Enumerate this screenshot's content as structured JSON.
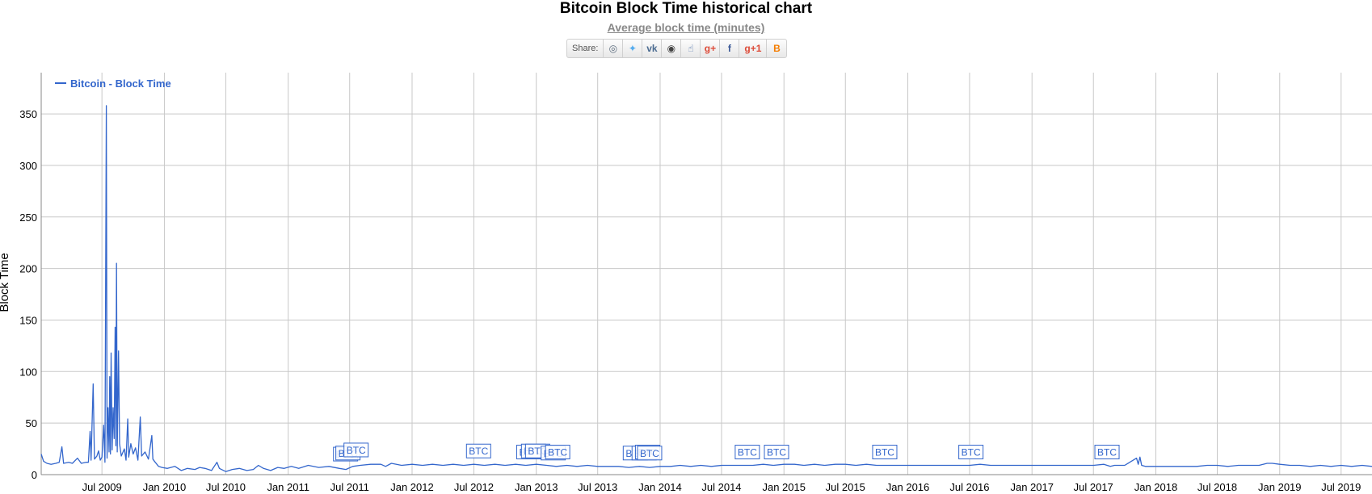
{
  "header": {
    "title": "Bitcoin Block Time historical chart",
    "subtitle": "Average block time (minutes)"
  },
  "share": {
    "label": "Share:",
    "buttons": [
      {
        "name": "reddit-icon",
        "glyph": "◎",
        "color": "#5f6f80"
      },
      {
        "name": "twitter-icon",
        "glyph": "✦",
        "color": "#55acee"
      },
      {
        "name": "vk-icon",
        "glyph": "vk",
        "color": "#4c6c91"
      },
      {
        "name": "weibo-icon",
        "glyph": "◉",
        "color": "#444444"
      },
      {
        "name": "like-icon",
        "glyph": "☝",
        "color": "#4a6ea8"
      },
      {
        "name": "google-plus-icon",
        "glyph": "g+",
        "color": "#dd4b39"
      },
      {
        "name": "facebook-icon",
        "glyph": "f",
        "color": "#3b5998"
      },
      {
        "name": "google-plus-one-icon",
        "glyph": "g+1",
        "color": "#dd4b39"
      },
      {
        "name": "blogger-icon",
        "glyph": "B",
        "color": "#f57d00"
      }
    ]
  },
  "chart_data": {
    "type": "line",
    "title": "Bitcoin Block Time historical chart",
    "subtitle": "Average block time (minutes)",
    "xlabel": "",
    "ylabel": "Block Time",
    "ylim": [
      0,
      390
    ],
    "yticks": [
      0,
      50,
      100,
      150,
      200,
      250,
      300,
      350
    ],
    "xlim": [
      "2009-01-03",
      "2019-09-30"
    ],
    "xticks": [
      {
        "label": "Jul 2009",
        "date": "2009-07-01"
      },
      {
        "label": "Jan 2010",
        "date": "2010-01-01"
      },
      {
        "label": "Jul 2010",
        "date": "2010-07-01"
      },
      {
        "label": "Jan 2011",
        "date": "2011-01-01"
      },
      {
        "label": "Jul 2011",
        "date": "2011-07-01"
      },
      {
        "label": "Jan 2012",
        "date": "2012-01-01"
      },
      {
        "label": "Jul 2012",
        "date": "2012-07-01"
      },
      {
        "label": "Jan 2013",
        "date": "2013-01-01"
      },
      {
        "label": "Jul 2013",
        "date": "2013-07-01"
      },
      {
        "label": "Jan 2014",
        "date": "2014-01-01"
      },
      {
        "label": "Jul 2014",
        "date": "2014-07-01"
      },
      {
        "label": "Jan 2015",
        "date": "2015-01-01"
      },
      {
        "label": "Jul 2015",
        "date": "2015-07-01"
      },
      {
        "label": "Jan 2016",
        "date": "2016-01-01"
      },
      {
        "label": "Jul 2016",
        "date": "2016-07-01"
      },
      {
        "label": "Jan 2017",
        "date": "2017-01-01"
      },
      {
        "label": "Jul 2017",
        "date": "2017-07-01"
      },
      {
        "label": "Jan 2018",
        "date": "2018-01-01"
      },
      {
        "label": "Jul 2018",
        "date": "2018-07-01"
      },
      {
        "label": "Jan 2019",
        "date": "2019-01-01"
      },
      {
        "label": "Jul 2019",
        "date": "2019-07-01"
      }
    ],
    "grid": true,
    "legend": {
      "position": "top-left",
      "entries": [
        "Bitcoin - Block Time"
      ]
    },
    "color": "#3366cc",
    "series": [
      {
        "name": "Bitcoin - Block Time",
        "points": [
          [
            "2009-01-03",
            20
          ],
          [
            "2009-01-10",
            13
          ],
          [
            "2009-01-20",
            11
          ],
          [
            "2009-02-01",
            10
          ],
          [
            "2009-02-15",
            11
          ],
          [
            "2009-02-25",
            12
          ],
          [
            "2009-03-05",
            27
          ],
          [
            "2009-03-10",
            11
          ],
          [
            "2009-03-25",
            12
          ],
          [
            "2009-04-05",
            11
          ],
          [
            "2009-04-20",
            16
          ],
          [
            "2009-05-01",
            11
          ],
          [
            "2009-05-15",
            12
          ],
          [
            "2009-05-22",
            12
          ],
          [
            "2009-05-27",
            42
          ],
          [
            "2009-05-30",
            14
          ],
          [
            "2009-06-05",
            88
          ],
          [
            "2009-06-09",
            15
          ],
          [
            "2009-06-16",
            18
          ],
          [
            "2009-06-21",
            23
          ],
          [
            "2009-06-26",
            14
          ],
          [
            "2009-07-01",
            17
          ],
          [
            "2009-07-06",
            48
          ],
          [
            "2009-07-10",
            12
          ],
          [
            "2009-07-14",
            358
          ],
          [
            "2009-07-16",
            16
          ],
          [
            "2009-07-19",
            65
          ],
          [
            "2009-07-22",
            22
          ],
          [
            "2009-07-24",
            95
          ],
          [
            "2009-07-26",
            20
          ],
          [
            "2009-07-28",
            118
          ],
          [
            "2009-07-31",
            24
          ],
          [
            "2009-08-03",
            65
          ],
          [
            "2009-08-06",
            35
          ],
          [
            "2009-08-09",
            143
          ],
          [
            "2009-08-11",
            28
          ],
          [
            "2009-08-13",
            205
          ],
          [
            "2009-08-15",
            22
          ],
          [
            "2009-08-19",
            120
          ],
          [
            "2009-08-22",
            30
          ],
          [
            "2009-08-27",
            18
          ],
          [
            "2009-09-05",
            25
          ],
          [
            "2009-09-10",
            14
          ],
          [
            "2009-09-15",
            54
          ],
          [
            "2009-09-18",
            17
          ],
          [
            "2009-09-24",
            30
          ],
          [
            "2009-10-01",
            20
          ],
          [
            "2009-10-08",
            26
          ],
          [
            "2009-10-15",
            14
          ],
          [
            "2009-10-22",
            56
          ],
          [
            "2009-10-26",
            18
          ],
          [
            "2009-11-05",
            22
          ],
          [
            "2009-11-15",
            15
          ],
          [
            "2009-11-25",
            38
          ],
          [
            "2009-11-28",
            15
          ],
          [
            "2009-12-05",
            12
          ],
          [
            "2009-12-15",
            8
          ],
          [
            "2009-12-25",
            7
          ],
          [
            "2010-01-10",
            6
          ],
          [
            "2010-02-01",
            8
          ],
          [
            "2010-02-20",
            4
          ],
          [
            "2010-03-10",
            6
          ],
          [
            "2010-04-01",
            5
          ],
          [
            "2010-04-15",
            7
          ],
          [
            "2010-05-01",
            6
          ],
          [
            "2010-05-20",
            4
          ],
          [
            "2010-06-05",
            12
          ],
          [
            "2010-06-12",
            6
          ],
          [
            "2010-07-01",
            3
          ],
          [
            "2010-07-20",
            5
          ],
          [
            "2010-08-10",
            6
          ],
          [
            "2010-09-01",
            4
          ],
          [
            "2010-09-20",
            5
          ],
          [
            "2010-10-05",
            9
          ],
          [
            "2010-10-20",
            6
          ],
          [
            "2010-11-10",
            4
          ],
          [
            "2010-12-01",
            7
          ],
          [
            "2010-12-20",
            6
          ],
          [
            "2011-01-10",
            8
          ],
          [
            "2011-02-01",
            6
          ],
          [
            "2011-03-01",
            9
          ],
          [
            "2011-04-01",
            7
          ],
          [
            "2011-05-01",
            8
          ],
          [
            "2011-06-01",
            6
          ],
          [
            "2011-06-20",
            5
          ],
          [
            "2011-07-10",
            8
          ],
          [
            "2011-08-01",
            9
          ],
          [
            "2011-09-01",
            10
          ],
          [
            "2011-10-01",
            10
          ],
          [
            "2011-10-15",
            8
          ],
          [
            "2011-11-01",
            11
          ],
          [
            "2011-12-01",
            9
          ],
          [
            "2012-01-01",
            10
          ],
          [
            "2012-02-01",
            9
          ],
          [
            "2012-03-01",
            10
          ],
          [
            "2012-04-01",
            9
          ],
          [
            "2012-05-01",
            10
          ],
          [
            "2012-06-01",
            9
          ],
          [
            "2012-07-01",
            10
          ],
          [
            "2012-08-01",
            9
          ],
          [
            "2012-09-01",
            10
          ],
          [
            "2012-10-01",
            9
          ],
          [
            "2012-11-01",
            10
          ],
          [
            "2012-12-01",
            9
          ],
          [
            "2013-01-01",
            10
          ],
          [
            "2013-02-01",
            9
          ],
          [
            "2013-03-01",
            8
          ],
          [
            "2013-04-01",
            9
          ],
          [
            "2013-05-01",
            8
          ],
          [
            "2013-06-01",
            9
          ],
          [
            "2013-07-01",
            8
          ],
          [
            "2013-08-01",
            8
          ],
          [
            "2013-09-01",
            8
          ],
          [
            "2013-10-01",
            7
          ],
          [
            "2013-11-01",
            8
          ],
          [
            "2013-12-01",
            7
          ],
          [
            "2014-01-01",
            8
          ],
          [
            "2014-02-01",
            8
          ],
          [
            "2014-03-01",
            9
          ],
          [
            "2014-04-01",
            8
          ],
          [
            "2014-05-01",
            9
          ],
          [
            "2014-06-01",
            8
          ],
          [
            "2014-07-01",
            9
          ],
          [
            "2014-08-01",
            9
          ],
          [
            "2014-09-01",
            9
          ],
          [
            "2014-10-01",
            9
          ],
          [
            "2014-11-01",
            10
          ],
          [
            "2014-12-01",
            9
          ],
          [
            "2015-01-01",
            10
          ],
          [
            "2015-02-01",
            10
          ],
          [
            "2015-03-01",
            9
          ],
          [
            "2015-04-01",
            10
          ],
          [
            "2015-05-01",
            9
          ],
          [
            "2015-06-01",
            10
          ],
          [
            "2015-07-01",
            10
          ],
          [
            "2015-08-01",
            9
          ],
          [
            "2015-09-01",
            10
          ],
          [
            "2015-10-01",
            9
          ],
          [
            "2015-11-01",
            9
          ],
          [
            "2015-12-01",
            9
          ],
          [
            "2016-01-01",
            9
          ],
          [
            "2016-02-01",
            9
          ],
          [
            "2016-03-01",
            9
          ],
          [
            "2016-04-01",
            9
          ],
          [
            "2016-05-01",
            9
          ],
          [
            "2016-06-01",
            9
          ],
          [
            "2016-07-01",
            9
          ],
          [
            "2016-08-01",
            10
          ],
          [
            "2016-09-01",
            9
          ],
          [
            "2016-10-01",
            9
          ],
          [
            "2016-11-01",
            9
          ],
          [
            "2016-12-01",
            9
          ],
          [
            "2017-01-01",
            9
          ],
          [
            "2017-02-01",
            9
          ],
          [
            "2017-03-01",
            9
          ],
          [
            "2017-04-01",
            9
          ],
          [
            "2017-05-01",
            9
          ],
          [
            "2017-06-01",
            9
          ],
          [
            "2017-07-01",
            9
          ],
          [
            "2017-08-01",
            10
          ],
          [
            "2017-08-20",
            8
          ],
          [
            "2017-09-01",
            9
          ],
          [
            "2017-10-01",
            9
          ],
          [
            "2017-11-05",
            16
          ],
          [
            "2017-11-10",
            10
          ],
          [
            "2017-11-15",
            17
          ],
          [
            "2017-11-20",
            9
          ],
          [
            "2017-12-01",
            8
          ],
          [
            "2018-01-01",
            8
          ],
          [
            "2018-02-01",
            8
          ],
          [
            "2018-03-01",
            8
          ],
          [
            "2018-04-01",
            8
          ],
          [
            "2018-05-01",
            8
          ],
          [
            "2018-06-01",
            9
          ],
          [
            "2018-07-01",
            9
          ],
          [
            "2018-08-01",
            8
          ],
          [
            "2018-09-01",
            9
          ],
          [
            "2018-10-01",
            9
          ],
          [
            "2018-11-01",
            9
          ],
          [
            "2018-11-25",
            11
          ],
          [
            "2018-12-10",
            11
          ],
          [
            "2019-01-01",
            10
          ],
          [
            "2019-02-01",
            9
          ],
          [
            "2019-03-01",
            9
          ],
          [
            "2019-04-01",
            8
          ],
          [
            "2019-05-01",
            9
          ],
          [
            "2019-06-01",
            8
          ],
          [
            "2019-07-01",
            9
          ],
          [
            "2019-08-01",
            8
          ],
          [
            "2019-09-01",
            9
          ],
          [
            "2019-09-30",
            8
          ]
        ]
      }
    ],
    "annotations": [
      {
        "date": "2011-06-19",
        "text": "BTC",
        "y": 7
      },
      {
        "date": "2011-06-26",
        "text": "BTC",
        "y": 8
      },
      {
        "date": "2011-07-20",
        "text": "BTC",
        "y": 11
      },
      {
        "date": "2012-07-15",
        "text": "BTC",
        "y": 10
      },
      {
        "date": "2012-12-10",
        "text": "BTC",
        "y": 9
      },
      {
        "date": "2012-12-24",
        "text": "BTC",
        "y": 10
      },
      {
        "date": "2013-01-05",
        "text": "BTC",
        "y": 10
      },
      {
        "date": "2013-02-20",
        "text": "BTC",
        "y": 8
      },
      {
        "date": "2013-03-05",
        "text": "BTC",
        "y": 9
      },
      {
        "date": "2013-10-20",
        "text": "BTC",
        "y": 8
      },
      {
        "date": "2013-11-15",
        "text": "BTC",
        "y": 8
      },
      {
        "date": "2013-11-25",
        "text": "BTC",
        "y": 9
      },
      {
        "date": "2013-12-01",
        "text": "BTC",
        "y": 8
      },
      {
        "date": "2014-09-15",
        "text": "BTC",
        "y": 9
      },
      {
        "date": "2014-12-10",
        "text": "BTC",
        "y": 9
      },
      {
        "date": "2015-10-25",
        "text": "BTC",
        "y": 9
      },
      {
        "date": "2016-07-05",
        "text": "BTC",
        "y": 9
      },
      {
        "date": "2017-08-10",
        "text": "BTC",
        "y": 9
      }
    ]
  }
}
